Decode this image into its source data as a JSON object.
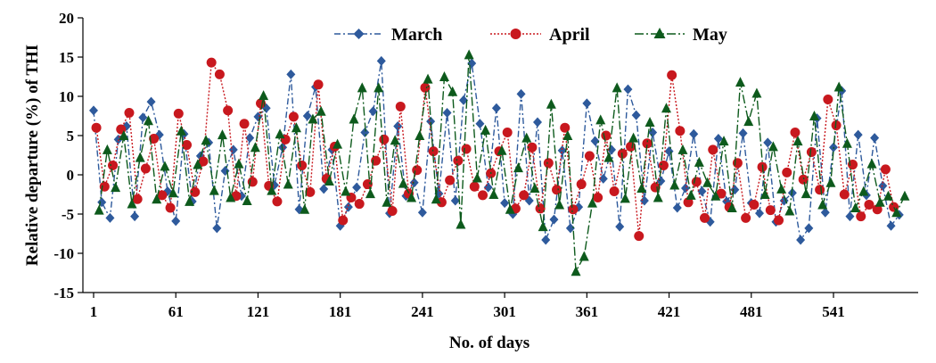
{
  "chart_data": {
    "type": "line",
    "title": "",
    "xlabel": "No. of days",
    "ylabel": "Relative departure (%) of THI",
    "xlim": [
      1,
      595
    ],
    "ylim": [
      -15,
      20
    ],
    "xticks": [
      1,
      61,
      121,
      181,
      241,
      301,
      361,
      421,
      481,
      541
    ],
    "xtick_labels": [
      "1",
      "61",
      "121",
      "181",
      "241",
      "301",
      "361",
      "421",
      "481",
      "541"
    ],
    "yticks": [
      -15,
      -10,
      -5,
      0,
      5,
      10,
      15,
      20
    ],
    "ytick_labels": [
      "-15",
      "-10",
      "-5",
      "0",
      "5",
      "10",
      "15",
      "20"
    ],
    "grid": false,
    "legend_position": "top",
    "series": [
      {
        "name": "March",
        "color": "#2e5a9c",
        "marker": "diamond",
        "line": "dash-dot",
        "x": [
          1,
          7,
          13,
          19,
          25,
          31,
          37,
          43,
          49,
          55,
          61,
          67,
          73,
          79,
          85,
          91,
          97,
          103,
          109,
          115,
          121,
          127,
          133,
          139,
          145,
          151,
          157,
          163,
          169,
          175,
          181,
          187,
          193,
          199,
          205,
          211,
          217,
          223,
          229,
          235,
          241,
          247,
          253,
          259,
          265,
          271,
          277,
          283,
          289,
          295,
          301,
          307,
          313,
          319,
          325,
          331,
          337,
          343,
          349,
          355,
          361,
          367,
          373,
          379,
          385,
          391,
          397,
          403,
          409,
          415,
          421,
          427,
          433,
          439,
          445,
          451,
          457,
          463,
          469,
          475,
          481,
          487,
          493,
          499,
          505,
          511,
          517,
          523,
          529,
          535,
          541,
          547,
          553,
          559,
          565,
          571,
          577,
          583,
          589
        ],
        "values": [
          8.2,
          -3.5,
          -5.5,
          4.5,
          6.2,
          -5.3,
          7.3,
          9.3,
          5.1,
          -2.1,
          -5.9,
          5.2,
          -3.4,
          2.4,
          4.1,
          -6.8,
          0.5,
          3.2,
          -2.7,
          4.7,
          7.4,
          8.5,
          -1.3,
          3.5,
          12.8,
          -4.4,
          7.5,
          11.2,
          -1.8,
          3.2,
          -6.5,
          -4.1,
          -1.6,
          5.4,
          8.1,
          14.5,
          -4.9,
          6.2,
          -2.7,
          -1.0,
          -4.8,
          6.8,
          -2.4,
          7.9,
          -3.3,
          9.5,
          14.2,
          6.5,
          -1.6,
          8.5,
          -3.6,
          -5.0,
          10.3,
          -3.3,
          6.7,
          -8.3,
          -5.7,
          3.1,
          -6.8,
          -4.1,
          9.1,
          4.3,
          -0.5,
          3.2,
          -6.6,
          10.9,
          7.6,
          -3.3,
          5.4,
          -0.8,
          3.0,
          -4.2,
          -1.7,
          5.2,
          -2.1,
          -6.0,
          4.6,
          -3.4,
          -1.9,
          5.3,
          -3.6,
          -4.9,
          4.1,
          -6.0,
          -3.3,
          -2.3,
          -8.3,
          -6.8,
          7.2,
          -4.8,
          3.5,
          10.7,
          -5.3,
          5.1,
          -2.6,
          4.7,
          -1.4,
          -6.5,
          -5.1
        ]
      },
      {
        "name": "April",
        "color": "#c8181e",
        "marker": "circle",
        "line": "dot",
        "x": [
          3,
          9,
          15,
          21,
          27,
          33,
          39,
          45,
          51,
          57,
          63,
          69,
          75,
          81,
          87,
          93,
          99,
          105,
          111,
          117,
          123,
          129,
          135,
          141,
          147,
          153,
          159,
          165,
          171,
          177,
          183,
          189,
          195,
          201,
          207,
          213,
          219,
          225,
          231,
          237,
          243,
          249,
          255,
          261,
          267,
          273,
          279,
          285,
          291,
          297,
          303,
          309,
          315,
          321,
          327,
          333,
          339,
          345,
          351,
          357,
          363,
          369,
          375,
          381,
          387,
          393,
          399,
          405,
          411,
          417,
          423,
          429,
          435,
          441,
          447,
          453,
          459,
          465,
          471,
          477,
          483,
          489,
          495,
          501,
          507,
          513,
          519,
          525,
          531,
          537,
          543,
          549,
          555,
          561,
          567,
          573,
          579,
          585
        ],
        "values": [
          6.0,
          -1.5,
          1.2,
          5.8,
          7.9,
          -3.1,
          0.8,
          4.6,
          -2.6,
          -4.2,
          7.8,
          3.8,
          -2.2,
          1.7,
          14.3,
          12.8,
          8.2,
          -2.7,
          6.5,
          -0.9,
          9.1,
          -1.4,
          -3.4,
          4.5,
          7.4,
          1.2,
          -2.2,
          11.5,
          -0.5,
          3.6,
          -5.8,
          -2.9,
          -3.7,
          -1.2,
          1.8,
          4.5,
          -4.6,
          8.7,
          -2.4,
          0.6,
          11.1,
          3.0,
          -3.5,
          -0.7,
          1.8,
          3.3,
          -1.5,
          -2.6,
          0.2,
          3.0,
          5.4,
          -4.3,
          -2.6,
          3.5,
          -4.3,
          1.5,
          -1.9,
          6.0,
          -4.4,
          -1.2,
          2.4,
          -2.9,
          5.0,
          -2.1,
          2.7,
          3.6,
          -7.8,
          4.0,
          -1.6,
          1.2,
          12.7,
          5.6,
          -3.5,
          -0.9,
          -5.5,
          3.2,
          -2.4,
          -4.1,
          1.5,
          -5.5,
          -3.8,
          1.0,
          -4.5,
          -5.8,
          0.3,
          5.4,
          -0.6,
          2.9,
          -1.9,
          9.6,
          6.3,
          -2.5,
          1.3,
          -5.3,
          -3.8,
          -4.4,
          0.7,
          -4.1
        ]
      },
      {
        "name": "May",
        "color": "#0d5a1c",
        "marker": "triangle",
        "line": "long-dash-dot",
        "x": [
          5,
          11,
          17,
          23,
          29,
          35,
          41,
          47,
          53,
          59,
          65,
          71,
          77,
          83,
          89,
          95,
          101,
          107,
          113,
          119,
          125,
          131,
          137,
          143,
          149,
          155,
          161,
          167,
          173,
          179,
          185,
          191,
          197,
          203,
          209,
          215,
          221,
          227,
          233,
          239,
          245,
          251,
          257,
          263,
          269,
          275,
          281,
          287,
          293,
          299,
          305,
          311,
          317,
          323,
          329,
          335,
          341,
          347,
          353,
          359,
          365,
          371,
          377,
          383,
          389,
          395,
          401,
          407,
          413,
          419,
          425,
          431,
          437,
          443,
          449,
          455,
          461,
          467,
          473,
          479,
          485,
          491,
          497,
          503,
          509,
          515,
          521,
          527,
          533,
          539,
          545,
          551,
          557,
          563,
          569,
          575,
          581,
          587,
          593
        ],
        "values": [
          -4.5,
          3.2,
          -1.6,
          5.0,
          -3.7,
          2.2,
          6.9,
          -3.1,
          1.1,
          -2.3,
          5.6,
          -3.4,
          1.3,
          4.4,
          -2.0,
          5.1,
          -2.9,
          1.4,
          -3.3,
          3.5,
          10.1,
          -2.0,
          5.2,
          -1.2,
          6.0,
          -4.4,
          7.1,
          8.1,
          -0.8,
          3.9,
          -2.1,
          7.1,
          11.1,
          -2.4,
          11.1,
          -3.5,
          4.4,
          -1.1,
          -2.9,
          5.0,
          12.2,
          -3.1,
          12.5,
          10.6,
          -6.3,
          15.3,
          -0.4,
          5.7,
          -2.5,
          3.1,
          -4.4,
          0.9,
          4.7,
          -1.7,
          -6.6,
          9.0,
          -3.8,
          5.0,
          -12.3,
          -10.4,
          -3.6,
          7.0,
          2.2,
          11.1,
          -3.0,
          4.7,
          -1.7,
          6.7,
          -2.9,
          8.5,
          -1.3,
          3.2,
          -2.6,
          1.6,
          -1.0,
          -2.7,
          4.3,
          -4.2,
          11.8,
          6.8,
          10.4,
          -2.5,
          3.6,
          -1.8,
          -4.6,
          4.3,
          -2.4,
          7.5,
          -3.8,
          -1.0,
          11.2,
          4.0,
          -4.2,
          -2.1,
          1.4,
          -3.5,
          -2.7,
          -4.8,
          -2.7
        ]
      }
    ]
  }
}
